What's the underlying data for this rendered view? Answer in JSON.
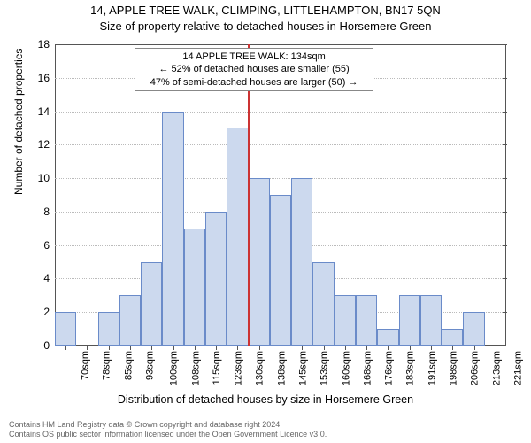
{
  "title_line1": "14, APPLE TREE WALK, CLIMPING, LITTLEHAMPTON, BN17 5QN",
  "title_line2": "Size of property relative to detached houses in Horsemere Green",
  "ylabel": "Number of detached properties",
  "xlabel": "Distribution of detached houses by size in Horsemere Green",
  "footer_line1": "Contains HM Land Registry data © Crown copyright and database right 2024.",
  "footer_line2": "Contains OS public sector information licensed under the Open Government Licence v3.0.",
  "chart": {
    "type": "histogram",
    "background_color": "#ffffff",
    "grid_color": "#bbbbbb",
    "axis_color": "#555555",
    "bar_fill": "#ccd9ee",
    "bar_border": "#6a8bc9",
    "ref_line_color": "#cc3333",
    "ylim": [
      0,
      18
    ],
    "ytick_step": 2,
    "yticks": [
      0,
      2,
      4,
      6,
      8,
      10,
      12,
      14,
      16,
      18
    ],
    "xticks": [
      70,
      78,
      85,
      93,
      100,
      108,
      115,
      123,
      130,
      138,
      145,
      153,
      160,
      168,
      176,
      183,
      191,
      198,
      206,
      213,
      221
    ],
    "xtick_suffix": "sqm",
    "bars": [
      {
        "x": 70,
        "count": 2
      },
      {
        "x": 78,
        "count": 0
      },
      {
        "x": 85,
        "count": 2
      },
      {
        "x": 93,
        "count": 3
      },
      {
        "x": 100,
        "count": 5
      },
      {
        "x": 108,
        "count": 14
      },
      {
        "x": 115,
        "count": 7
      },
      {
        "x": 123,
        "count": 8
      },
      {
        "x": 130,
        "count": 13
      },
      {
        "x": 138,
        "count": 10
      },
      {
        "x": 145,
        "count": 9
      },
      {
        "x": 153,
        "count": 10
      },
      {
        "x": 160,
        "count": 5
      },
      {
        "x": 168,
        "count": 3
      },
      {
        "x": 176,
        "count": 3
      },
      {
        "x": 183,
        "count": 1
      },
      {
        "x": 191,
        "count": 3
      },
      {
        "x": 198,
        "count": 3
      },
      {
        "x": 206,
        "count": 1
      },
      {
        "x": 213,
        "count": 2
      },
      {
        "x": 221,
        "count": 0
      }
    ],
    "reference_value": 134,
    "annotation": {
      "line1": "14 APPLE TREE WALK: 134sqm",
      "line2": "← 52% of detached houses are smaller (55)",
      "line3": "47% of semi-detached houses are larger (50) →"
    },
    "title_fontsize": 13,
    "label_fontsize": 12,
    "tick_fontsize": 11
  }
}
